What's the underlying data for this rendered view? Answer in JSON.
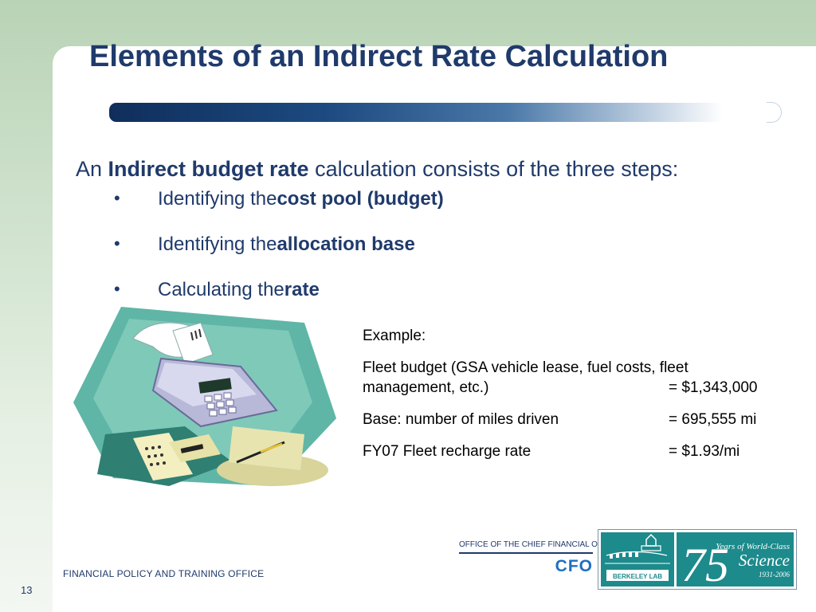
{
  "slide": {
    "title": "Elements of an Indirect Rate Calculation",
    "intro": {
      "prefix": "An ",
      "emphasis": "Indirect budget rate",
      "suffix": " calculation consists of the three steps:"
    },
    "steps": [
      {
        "bullet": "•",
        "text": "Identifying the ",
        "emphasis": "cost pool (budget)"
      },
      {
        "bullet": "•",
        "text": "Identifying the ",
        "emphasis": "allocation base"
      },
      {
        "bullet": "•",
        "text": "Calculating the ",
        "emphasis": "rate"
      }
    ],
    "illustration_icon": "adding-machine-clipart",
    "example": {
      "heading": "Example:",
      "rows": [
        {
          "label_line1": "Fleet budget (GSA vehicle lease, fuel costs, fleet",
          "label_line2": "management, etc.)",
          "value": "= $1,343,000"
        },
        {
          "label": "Base: number of miles driven",
          "value": "= 695,555 mi"
        },
        {
          "label": "FY07 Fleet recharge rate",
          "value": "= $1.93/mi"
        }
      ]
    }
  },
  "footer": {
    "office": "FINANCIAL POLICY AND TRAINING OFFICE",
    "page_number": "13",
    "cfo_office": "OFFICE OF THE CHIEF FINANCIAL OFFICER",
    "cfo_mark": "CFO",
    "lab_logo": {
      "lab_name": "BERKELEY LAB",
      "anniversary": "75",
      "tagline_line1": "Years of World-Class",
      "tagline_line2": "Science",
      "years": "1931-2006"
    }
  },
  "colors": {
    "title": "#1f3a6b",
    "rule_dark": "#0f2e5c",
    "background_green": "#b9d3b6",
    "logo_teal": "#1d8a8c"
  }
}
